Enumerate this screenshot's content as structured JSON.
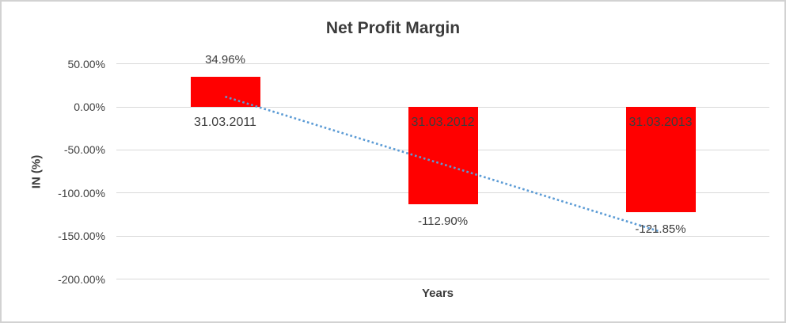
{
  "window": {
    "background": "#ffffff",
    "border_color": "#d2d2d2"
  },
  "chart_data": {
    "type": "bar",
    "title": "Net Profit Margin",
    "categories": [
      "31.03.2011",
      "31.03.2012",
      "31.03.2013"
    ],
    "values": [
      34.96,
      -112.9,
      -121.85
    ],
    "data_labels": [
      "34.96%",
      "-112.90%",
      "-121.85%"
    ],
    "xlabel": "Years",
    "ylabel": "IN (%)",
    "ylim": [
      -200,
      50
    ],
    "yticks": [
      {
        "value": 50,
        "label": "50.00%"
      },
      {
        "value": 0,
        "label": "0.00%"
      },
      {
        "value": -50,
        "label": "-50.00%"
      },
      {
        "value": -100,
        "label": "-100.00%"
      },
      {
        "value": -150,
        "label": "-150.00%"
      },
      {
        "value": -200,
        "label": "-200.00%"
      }
    ],
    "grid": true,
    "legend": "none",
    "trendline": {
      "type": "linear",
      "style": "dotted"
    },
    "colors": {
      "bar": "#ff0000",
      "trendline": "#5b9bd5",
      "title_text": "#3b3b3b",
      "label_text": "#3d3d3d",
      "tick_text": "#404040",
      "gridline": "#d9d9d9"
    }
  }
}
